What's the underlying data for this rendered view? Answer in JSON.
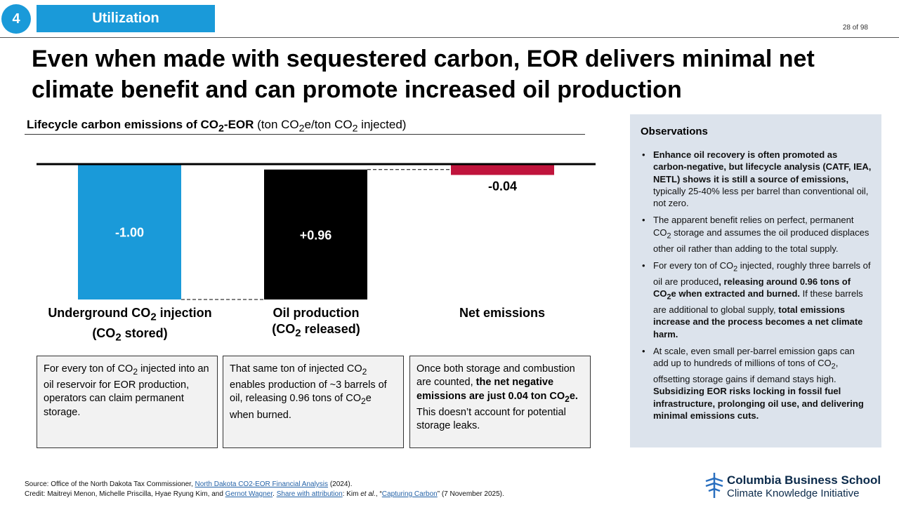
{
  "header": {
    "section_number": "4",
    "section_name": "Utilization",
    "page_number": "28 of 98"
  },
  "title": "Even when made with sequestered carbon, EOR delivers minimal net climate benefit and can promote increased oil production",
  "chart": {
    "title_bold_1": "Lifecycle carbon emissions of CO",
    "title_bold_sub": "2",
    "title_bold_2": "-EOR",
    "title_rest_1": " (ton CO",
    "title_rest_sub1": "2",
    "title_rest_2": "e/ton CO",
    "title_rest_sub2": "2",
    "title_rest_3": " injected)"
  },
  "chart_data": {
    "type": "bar",
    "subtype": "waterfall",
    "categories": [
      "Underground CO₂ injection (CO₂ stored)",
      "Oil production (CO₂ released)",
      "Net emissions"
    ],
    "values": [
      -1.0,
      0.96,
      -0.04
    ],
    "data_labels": [
      "-1.00",
      "+0.96",
      "-0.04"
    ],
    "colors": [
      "#1a9ad9",
      "#000000",
      "#c0143c"
    ],
    "ylim": [
      -1.0,
      0
    ],
    "connectors": "dashed",
    "grid": false
  },
  "categories": [
    {
      "line1_pre": "Underground CO",
      "line1_sub": "2",
      "line1_post": " injection",
      "line2_pre": "(CO",
      "line2_sub": "2",
      "line2_post": " stored)"
    },
    {
      "line1_pre": "Oil production",
      "line1_sub": "",
      "line1_post": "",
      "line2_pre": "(CO",
      "line2_sub": "2",
      "line2_post": " released)"
    },
    {
      "line1_pre": "Net emissions",
      "line1_sub": "",
      "line1_post": "",
      "line2_pre": "",
      "line2_sub": "",
      "line2_post": ""
    }
  ],
  "boxes": [
    {
      "t1": "For every ton of CO",
      "s1": "2",
      "t2": " injected into an oil reservoir for EOR production, operators can claim permanent storage."
    },
    {
      "t1": "That same ton of injected CO",
      "s1": "2",
      "t2": " enables production of ~3 barrels of oil, releasing 0.96 tons of CO",
      "s2": "2",
      "t3": "e when burned."
    },
    {
      "t1": "Once both storage and combustion are counted, ",
      "b1": "the net negative emissions are just 0.04 ton CO",
      "bs": "2",
      "b2": "e.",
      "t2": " This doesn’t account for potential storage leaks."
    }
  ],
  "observations": {
    "heading": "Observations",
    "items": [
      {
        "b1": "Enhance oil recovery is often promoted as carbon-negative, but lifecycle analysis (CATF, IEA, NETL) shows it is still a source of emissions,",
        "t1": " typically 25-40% less per barrel than conventional oil, not zero."
      },
      {
        "t1": "The apparent benefit relies on perfect, permanent CO",
        "s1": "2",
        "t2": " storage and assumes the oil produced displaces other oil rather than adding to the total supply."
      },
      {
        "t1": "For every ton of CO",
        "s1": "2",
        "t2": " injected, roughly three barrels of oil are produced",
        "b1": ", releasing around 0.96 tons of CO",
        "bs": "2",
        "b2": "e when extracted and burned.",
        "t3": " If these barrels are additional to global supply, ",
        "b3": "total emissions increase and the process becomes a net climate harm."
      },
      {
        "t1": "At scale, even small per-barrel emission gaps can add up to hundreds of millions of tons of CO",
        "s1": "2",
        "t2": ", offsetting storage gains if demand stays high. ",
        "b1": " Subsidizing EOR risks locking in fossil fuel infrastructure, prolonging oil use, and delivering minimal emissions cuts."
      }
    ]
  },
  "source": {
    "line1_pre": "Source: Office of the North Dakota Tax Commissioner, ",
    "line1_link": "North Dakota CO2-EOR Financial Analysis",
    "line1_post": " (2024).",
    "line2_pre": "Credit: Maitreyi Menon, Michelle Priscilla, Hyae Ryung Kim, and ",
    "line2_link1": "Gernot Wagner",
    "line2_sep": ". ",
    "line2_link2": "Share with attribution",
    "line2_mid1": ": Kim ",
    "line2_etal": "et al.",
    "line2_mid2": ", “",
    "line2_link3": "Capturing Carbon",
    "line2_post": "” (7 November 2025)."
  },
  "logo": {
    "name": "Columbia Business School",
    "subtitle": "Climate Knowledge Initiative",
    "color": "#0b2a4a"
  }
}
